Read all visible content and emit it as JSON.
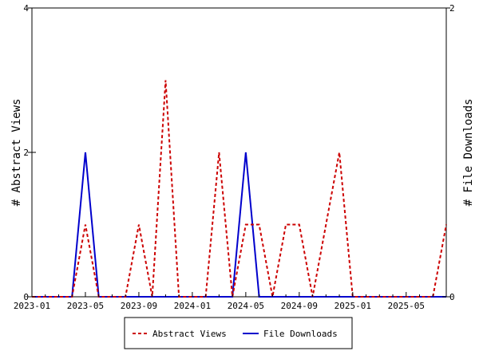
{
  "chart_data": {
    "type": "line",
    "title": "",
    "ylabel_left": "# Abstract Views",
    "ylabel_right": "# File Downloads",
    "y_left_range": [
      0,
      4
    ],
    "y_right_range": [
      0,
      2
    ],
    "y_left_ticks": [
      0,
      2,
      4
    ],
    "y_right_ticks": [
      0,
      2
    ],
    "x_range": [
      "2023-01",
      "2025-08"
    ],
    "x_tick_labels": [
      "2023-01",
      "2023-05",
      "2023-09",
      "2024-01",
      "2024-05",
      "2024-09",
      "2025-01",
      "2025-05"
    ],
    "x_months": [
      "2023-01",
      "2023-02",
      "2023-03",
      "2023-04",
      "2023-05",
      "2023-06",
      "2023-07",
      "2023-08",
      "2023-09",
      "2023-10",
      "2023-11",
      "2023-12",
      "2024-01",
      "2024-02",
      "2024-03",
      "2024-04",
      "2024-05",
      "2024-06",
      "2024-07",
      "2024-08",
      "2024-09",
      "2024-10",
      "2024-11",
      "2024-12",
      "2025-01",
      "2025-02",
      "2025-03",
      "2025-04",
      "2025-05",
      "2025-06",
      "2025-07",
      "2025-08"
    ],
    "grid": false,
    "legend_position": "bottom",
    "series": [
      {
        "name": "Abstract Views",
        "axis": "left",
        "color": "#cc0000",
        "style": "dashed",
        "values": [
          0,
          0,
          0,
          0,
          1,
          0,
          0,
          0,
          1,
          0,
          3,
          0,
          0,
          0,
          2,
          0,
          1,
          1,
          0,
          1,
          1,
          0,
          1,
          2,
          0,
          0,
          0,
          0,
          0,
          0,
          0,
          1
        ]
      },
      {
        "name": "File Downloads",
        "axis": "right",
        "color": "#0000cc",
        "style": "solid",
        "values": [
          0,
          0,
          0,
          0,
          1,
          0,
          0,
          0,
          0,
          0,
          0,
          0,
          0,
          0,
          0,
          0,
          1,
          0,
          0,
          0,
          0,
          0,
          0,
          0,
          0,
          0,
          0,
          0,
          0,
          0,
          0,
          0
        ]
      }
    ]
  }
}
